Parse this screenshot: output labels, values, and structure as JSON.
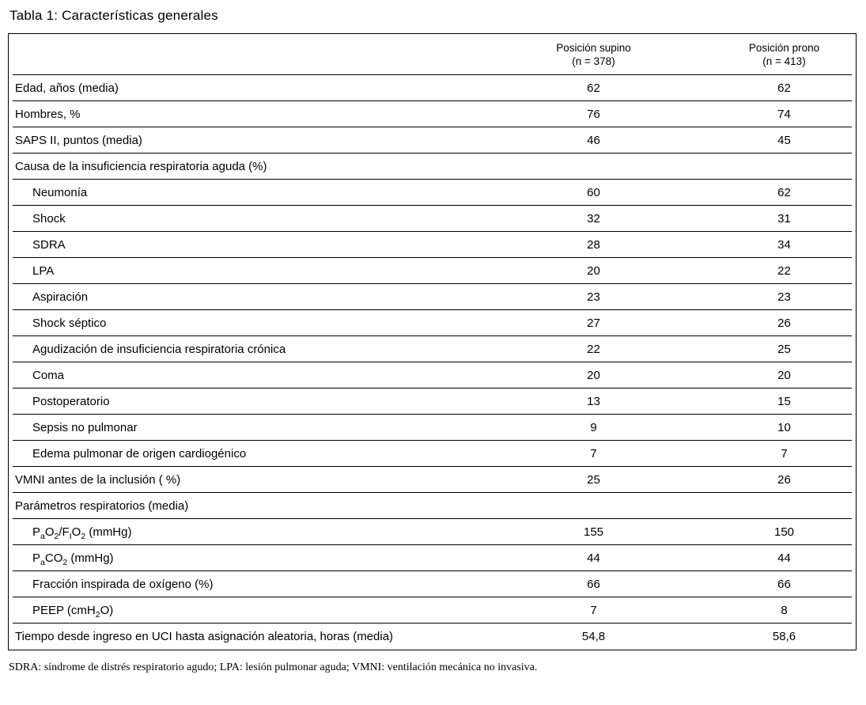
{
  "title": "Tabla 1: Características generales",
  "table": {
    "columns": [
      {
        "label": "Posición supino",
        "n": "(n = 378)"
      },
      {
        "label": "Posición prono",
        "n": "(n = 413)"
      }
    ],
    "rows": [
      {
        "label": "Edad, años (media)",
        "indent": false,
        "supino": "62",
        "prono": "62"
      },
      {
        "label": "Hombres, %",
        "indent": false,
        "supino": "76",
        "prono": "74"
      },
      {
        "label": "SAPS II, puntos (media)",
        "indent": false,
        "supino": "46",
        "prono": "45"
      },
      {
        "label": "Causa de la insuficiencia respiratoria aguda (%)",
        "indent": false,
        "supino": "",
        "prono": ""
      },
      {
        "label": "Neumonía",
        "indent": true,
        "supino": "60",
        "prono": "62"
      },
      {
        "label": "Shock",
        "indent": true,
        "supino": "32",
        "prono": "31"
      },
      {
        "label": "SDRA",
        "indent": true,
        "supino": "28",
        "prono": "34"
      },
      {
        "label": "LPA",
        "indent": true,
        "supino": "20",
        "prono": "22"
      },
      {
        "label": "Aspiración",
        "indent": true,
        "supino": "23",
        "prono": "23"
      },
      {
        "label": "Shock séptico",
        "indent": true,
        "supino": "27",
        "prono": "26"
      },
      {
        "label": "Agudización de insuficiencia respiratoria crónica",
        "indent": true,
        "supino": "22",
        "prono": "25"
      },
      {
        "label": "Coma",
        "indent": true,
        "supino": "20",
        "prono": "20"
      },
      {
        "label": "Postoperatorio",
        "indent": true,
        "supino": "13",
        "prono": "15"
      },
      {
        "label": "Sepsis no pulmonar",
        "indent": true,
        "supino": "9",
        "prono": "10"
      },
      {
        "label": "Edema pulmonar de origen cardiogénico",
        "indent": true,
        "supino": "7",
        "prono": "7"
      },
      {
        "label": "VMNI antes de la inclusión ( %)",
        "indent": false,
        "supino": "25",
        "prono": "26"
      },
      {
        "label": "Parámetros respiratorios (media)",
        "indent": false,
        "supino": "",
        "prono": ""
      },
      {
        "label_parts": [
          "P",
          "a",
          "O",
          "2",
          "/F",
          "I",
          "O",
          "2",
          " (mmHg)"
        ],
        "indent": true,
        "supino": "155",
        "prono": "150"
      },
      {
        "label_parts": [
          "P",
          "a",
          "CO",
          "2",
          "  (mmHg)"
        ],
        "indent": true,
        "supino": "44",
        "prono": "44"
      },
      {
        "label": "Fracción inspirada de oxígeno (%)",
        "indent": true,
        "supino": "66",
        "prono": "66"
      },
      {
        "label_parts": [
          "PEEP (cmH",
          "2",
          "O)"
        ],
        "indent": true,
        "supino": "7",
        "prono": "8"
      },
      {
        "label": "Tiempo desde ingreso en UCI hasta asignación aleatoria, horas (media)",
        "indent": false,
        "supino": "54,8",
        "prono": "58,6"
      }
    ]
  },
  "footnote": "SDRA: síndrome de distrés respiratorio agudo; LPA: lesión pulmonar aguda; VMNI: ventilación mecánica no invasiva.",
  "colors": {
    "text": "#000000",
    "border": "#000000",
    "background": "#ffffff"
  }
}
